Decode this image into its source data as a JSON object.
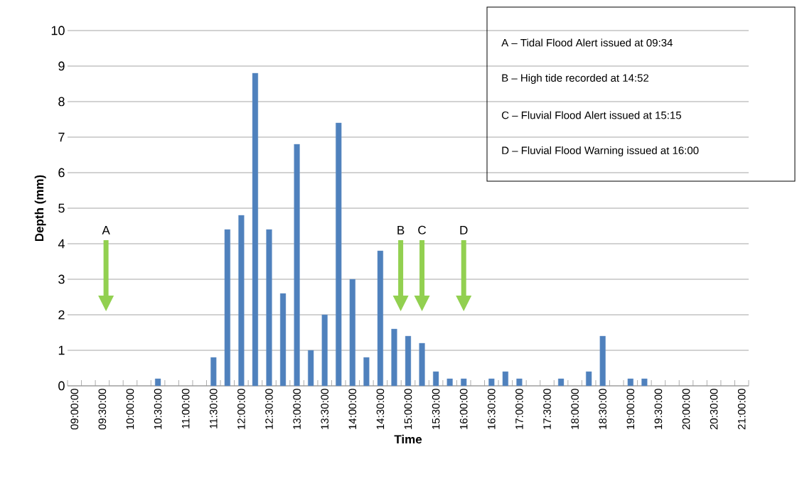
{
  "chart_data": {
    "type": "bar",
    "xlabel": "Time",
    "ylabel": "Depth (mm)",
    "color": "#4f81bd",
    "grid": "y",
    "x": [
      10.5,
      11.5,
      11.75,
      12,
      12.25,
      12.5,
      12.75,
      13,
      13.25,
      13.5,
      13.75,
      14,
      14.25,
      14.5,
      14.75,
      15,
      15.25,
      15.5,
      15.75,
      16,
      16.5,
      16.75,
      17,
      17.75,
      18.25,
      18.5,
      19,
      19.25
    ],
    "values": [
      0.2,
      0.8,
      4.4,
      4.8,
      8.8,
      4.4,
      2.6,
      6.8,
      1.0,
      2.0,
      7.4,
      3.0,
      0.8,
      3.8,
      1.6,
      1.4,
      1.2,
      0.4,
      0.2,
      0.2,
      0.2,
      0.4,
      0.2,
      0.2,
      0.4,
      1.4,
      0.2,
      0.2
    ],
    "xlim": [
      8.875,
      21.125
    ],
    "ylim": [
      0,
      10
    ],
    "xticks": [
      {
        "value": 9,
        "label": "09:00:00"
      },
      {
        "value": 9.5,
        "label": "09:30:00"
      },
      {
        "value": 10,
        "label": "10:00:00"
      },
      {
        "value": 10.5,
        "label": "10:30:00"
      },
      {
        "value": 11,
        "label": "11:00:00"
      },
      {
        "value": 11.5,
        "label": "11:30:00"
      },
      {
        "value": 12,
        "label": "12:00:00"
      },
      {
        "value": 12.5,
        "label": "12:30:00"
      },
      {
        "value": 13,
        "label": "13:00:00"
      },
      {
        "value": 13.5,
        "label": "13:30:00"
      },
      {
        "value": 14,
        "label": "14:00:00"
      },
      {
        "value": 14.5,
        "label": "14:30:00"
      },
      {
        "value": 15,
        "label": "15:00:00"
      },
      {
        "value": 15.5,
        "label": "15:30:00"
      },
      {
        "value": 16,
        "label": "16:00:00"
      },
      {
        "value": 16.5,
        "label": "16:30:00"
      },
      {
        "value": 17,
        "label": "17:00:00"
      },
      {
        "value": 17.5,
        "label": "17:30:00"
      },
      {
        "value": 18,
        "label": "18:00:00"
      },
      {
        "value": 18.5,
        "label": "18:30:00"
      },
      {
        "value": 19,
        "label": "19:00:00"
      },
      {
        "value": 19.5,
        "label": "19:30:00"
      },
      {
        "value": 20,
        "label": "20:00:00"
      },
      {
        "value": 20.5,
        "label": "20:30:00"
      },
      {
        "value": 21,
        "label": "21:00:00"
      }
    ],
    "yticks": [
      0,
      1,
      2,
      3,
      4,
      5,
      6,
      7,
      8,
      9,
      10
    ],
    "annotations": [
      "A",
      "B",
      "C",
      "D",
      "A – Tidal Flood Alert issued at 09:34",
      "B – High tide recorded at 14:52",
      "C – Fluvial Flood Alert issued at 15:15",
      "D – Fluvial Flood Warning issued at 16:00"
    ]
  }
}
